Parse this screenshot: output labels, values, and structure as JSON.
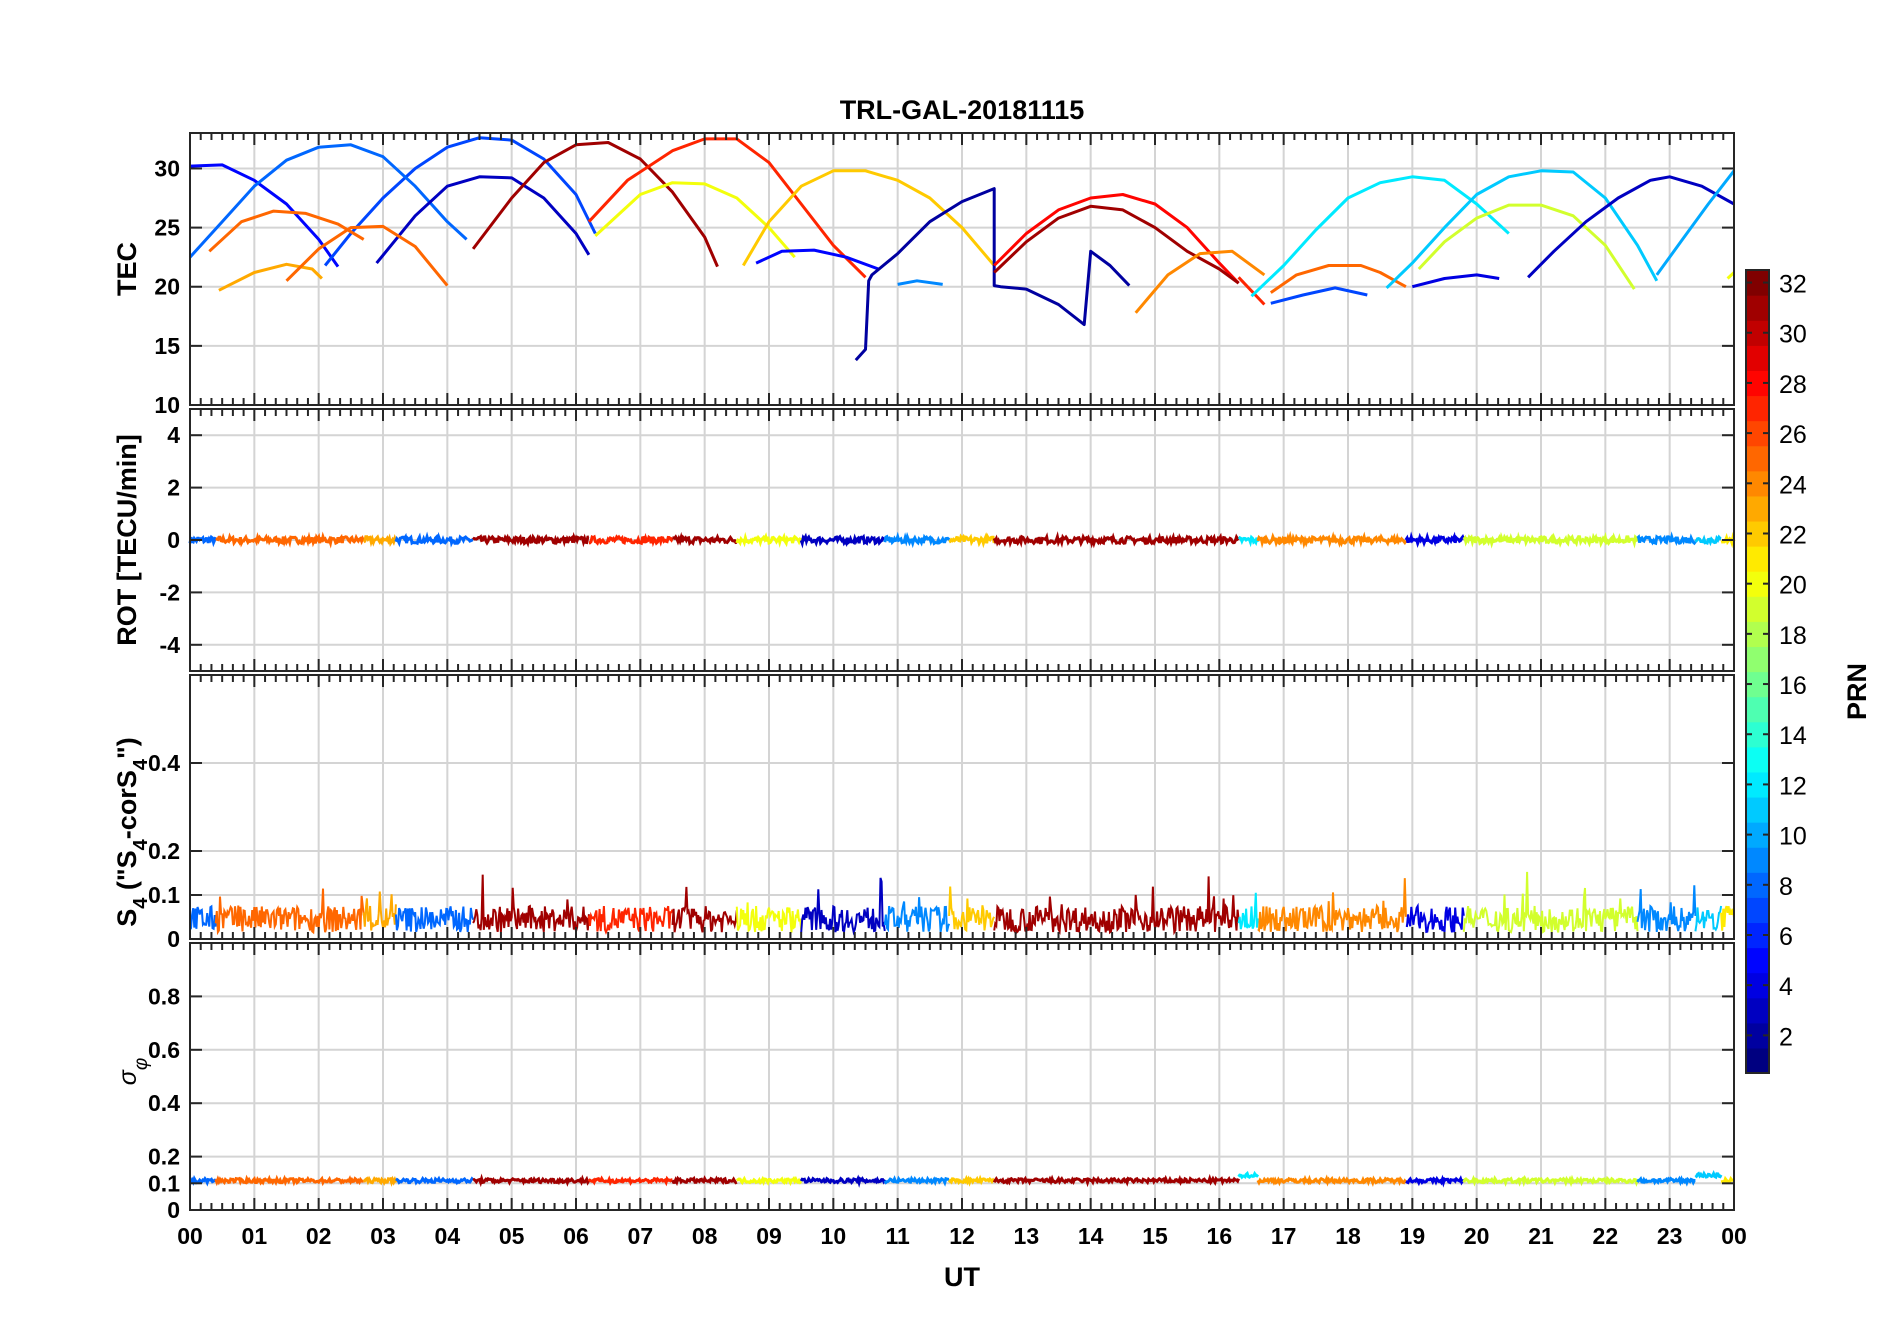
{
  "chart_data": {
    "type": "line",
    "title": "TRL-GAL-20181115",
    "xlabel": "UT",
    "x_ticks": [
      "00",
      "01",
      "02",
      "03",
      "04",
      "05",
      "06",
      "07",
      "08",
      "09",
      "10",
      "11",
      "12",
      "13",
      "14",
      "15",
      "16",
      "17",
      "18",
      "19",
      "20",
      "21",
      "22",
      "23",
      "00"
    ],
    "xlim": [
      0,
      24
    ],
    "grid": true,
    "colorbar": {
      "label": "PRN",
      "range": [
        1,
        32
      ],
      "ticks": [
        2,
        4,
        6,
        8,
        10,
        12,
        14,
        16,
        18,
        20,
        22,
        24,
        26,
        28,
        30,
        32
      ],
      "colormap": "jet"
    },
    "panels": [
      {
        "id": "tec",
        "ylabel": "TEC",
        "ylim": [
          10,
          33
        ],
        "yticks": [
          10,
          15,
          20,
          25,
          30
        ],
        "series": [
          {
            "prn": 5,
            "x": [
              0.0,
              0.5,
              1.0,
              1.5,
              2.0,
              2.3
            ],
            "y": [
              30.2,
              30.3,
              29.0,
              27.0,
              24.0,
              21.7
            ]
          },
          {
            "prn": 7,
            "x": [
              2.1,
              2.5,
              3.0,
              3.5,
              4.0,
              4.5,
              5.0,
              5.5,
              6.0,
              6.3
            ],
            "y": [
              21.8,
              24.5,
              27.5,
              30.0,
              31.8,
              32.6,
              32.4,
              30.8,
              27.8,
              24.5
            ]
          },
          {
            "prn": 8,
            "x": [
              0.0,
              0.5,
              1.0,
              1.5,
              2.0,
              2.5,
              3.0,
              3.5,
              4.0,
              4.3
            ],
            "y": [
              22.5,
              25.5,
              28.5,
              30.7,
              31.8,
              32.0,
              31.0,
              28.5,
              25.5,
              24.0
            ]
          },
          {
            "prn": 3,
            "x": [
              2.9,
              3.5,
              4.0,
              4.5,
              5.0,
              5.5,
              6.0,
              6.2
            ],
            "y": [
              22.0,
              26.0,
              28.5,
              29.3,
              29.2,
              27.5,
              24.5,
              22.7
            ]
          },
          {
            "prn": 25,
            "x": [
              0.3,
              0.8,
              1.3,
              1.8,
              2.3,
              2.7
            ],
            "y": [
              23.0,
              25.5,
              26.4,
              26.2,
              25.3,
              24.0
            ]
          },
          {
            "prn": 23,
            "x": [
              0.45,
              1.0,
              1.5,
              1.9,
              2.05
            ],
            "y": [
              19.7,
              21.2,
              21.9,
              21.5,
              20.7
            ]
          },
          {
            "prn": 25,
            "x": [
              1.5,
              2.0,
              2.5,
              3.0,
              3.5,
              4.0
            ],
            "y": [
              20.5,
              23.2,
              25.0,
              25.1,
              23.4,
              20.1
            ]
          },
          {
            "prn": 31,
            "x": [
              4.4,
              5.0,
              5.5,
              6.0,
              6.5,
              7.0,
              7.5,
              8.0,
              8.2
            ],
            "y": [
              23.2,
              27.5,
              30.5,
              32.0,
              32.2,
              30.8,
              28.0,
              24.2,
              21.7
            ]
          },
          {
            "prn": 27,
            "x": [
              6.2,
              6.8,
              7.5,
              8.0,
              8.5,
              9.0,
              9.5,
              10.0,
              10.5
            ],
            "y": [
              25.5,
              29.0,
              31.5,
              32.5,
              32.5,
              30.5,
              27.0,
              23.5,
              20.8
            ]
          },
          {
            "prn": 20,
            "x": [
              6.3,
              7.0,
              7.5,
              8.0,
              8.5,
              9.0,
              9.4
            ],
            "y": [
              24.3,
              27.8,
              28.8,
              28.7,
              27.5,
              25.0,
              22.5
            ]
          },
          {
            "prn": 22,
            "x": [
              8.6,
              9.0,
              9.5,
              10.0,
              10.5,
              11.0,
              11.5,
              12.0,
              12.5
            ],
            "y": [
              21.8,
              25.5,
              28.5,
              29.8,
              29.8,
              29.0,
              27.5,
              25.0,
              21.8
            ]
          },
          {
            "prn": 5,
            "x": [
              8.8,
              9.2,
              9.7,
              10.2,
              10.7
            ],
            "y": [
              22.0,
              23.0,
              23.1,
              22.5,
              21.5
            ]
          },
          {
            "prn": 2,
            "x": [
              10.35,
              10.5,
              10.55,
              10.6,
              11.0,
              11.5,
              12.0,
              12.5,
              12.5,
              12.6,
              13.0,
              13.5,
              13.9,
              14.0,
              14.3,
              14.6
            ],
            "y": [
              13.8,
              14.7,
              20.5,
              21.0,
              22.8,
              25.5,
              27.2,
              28.3,
              20.1,
              20.0,
              19.8,
              18.5,
              16.8,
              23.0,
              21.8,
              20.1
            ]
          },
          {
            "prn": 9,
            "x": [
              11.0,
              11.3,
              11.7
            ],
            "y": [
              20.2,
              20.5,
              20.2
            ]
          },
          {
            "prn": 28,
            "x": [
              12.5,
              13.0,
              13.5,
              14.0,
              14.5,
              15.0,
              15.5,
              16.0,
              16.3
            ],
            "y": [
              21.8,
              24.5,
              26.5,
              27.5,
              27.8,
              27.0,
              25.0,
              22.0,
              20.3
            ]
          },
          {
            "prn": 31,
            "x": [
              12.5,
              13.0,
              13.5,
              14.0,
              14.5,
              15.0,
              15.5,
              16.0,
              16.3
            ],
            "y": [
              21.2,
              23.8,
              25.8,
              26.8,
              26.5,
              25.0,
              23.0,
              21.5,
              20.3
            ]
          },
          {
            "prn": 24,
            "x": [
              14.7,
              15.2,
              15.7,
              16.2,
              16.7
            ],
            "y": [
              17.8,
              21.0,
              22.8,
              23.0,
              21.0
            ]
          },
          {
            "prn": 27,
            "x": [
              16.3,
              16.7
            ],
            "y": [
              20.8,
              18.5
            ]
          },
          {
            "prn": 12,
            "x": [
              16.5,
              17.0,
              17.5,
              18.0,
              18.5,
              19.0,
              19.5,
              20.0,
              20.5
            ],
            "y": [
              19.2,
              21.8,
              24.8,
              27.5,
              28.8,
              29.3,
              29.0,
              27.0,
              24.5
            ]
          },
          {
            "prn": 25,
            "x": [
              16.8,
              17.2,
              17.7,
              18.2,
              18.5,
              18.9
            ],
            "y": [
              19.5,
              21.0,
              21.8,
              21.8,
              21.2,
              20.0
            ]
          },
          {
            "prn": 7,
            "x": [
              16.8,
              17.3,
              17.8,
              18.3
            ],
            "y": [
              18.6,
              19.3,
              19.9,
              19.3
            ]
          },
          {
            "prn": 11,
            "x": [
              18.6,
              19.0,
              19.5,
              20.0,
              20.5,
              21.0,
              21.5,
              22.0,
              22.5,
              22.8
            ],
            "y": [
              19.9,
              22.0,
              25.0,
              27.8,
              29.3,
              29.8,
              29.7,
              27.5,
              23.5,
              20.5
            ]
          },
          {
            "prn": 4,
            "x": [
              19.0,
              19.5,
              20.0,
              20.35
            ],
            "y": [
              20.0,
              20.7,
              21.0,
              20.7
            ]
          },
          {
            "prn": 19,
            "x": [
              19.1,
              19.5,
              20.0,
              20.5,
              21.0,
              21.5,
              22.0,
              22.45
            ],
            "y": [
              21.5,
              23.8,
              25.8,
              26.9,
              26.9,
              26.0,
              23.5,
              19.8
            ]
          },
          {
            "prn": 3,
            "x": [
              20.8,
              21.2,
              21.7,
              22.2,
              22.7,
              23.0,
              23.5,
              24.0
            ],
            "y": [
              20.8,
              23.0,
              25.5,
              27.5,
              29.0,
              29.3,
              28.5,
              27.0
            ]
          },
          {
            "prn": 10,
            "x": [
              22.8,
              23.2,
              23.6,
              24.0
            ],
            "y": [
              21.0,
              24.0,
              27.0,
              29.8
            ]
          },
          {
            "prn": 20,
            "x": [
              23.9,
              24.0
            ],
            "y": [
              20.7,
              21.2
            ]
          }
        ]
      },
      {
        "id": "rot",
        "ylabel": "ROT [TECU/min]",
        "ylim": [
          -5,
          5
        ],
        "yticks": [
          -4,
          -2,
          0,
          2,
          4
        ]
      },
      {
        "id": "s4",
        "ylabel": "S4 (\"S4-corS4\")",
        "ylabel_parts": {
          "main": "S",
          "sub1": "4",
          "open": " (\"S",
          "sub2": "4",
          "mid": "-corS",
          "sub3": "4",
          "close": "\")"
        },
        "ylim": [
          0,
          0.6
        ],
        "yticks": [
          0,
          0.1,
          0.2,
          0.4
        ]
      },
      {
        "id": "sigma",
        "ylabel": "σφ",
        "ylabel_parts": {
          "sigma": "σ",
          "phi": "φ"
        },
        "ylim": [
          0,
          1
        ],
        "yticks": [
          0,
          0.1,
          0.2,
          0.4,
          0.6,
          0.8
        ]
      }
    ],
    "noise_segments": [
      {
        "prn": 8,
        "x": [
          0.0,
          0.4
        ]
      },
      {
        "prn": 25,
        "x": [
          0.4,
          2.7
        ]
      },
      {
        "prn": 23,
        "x": [
          2.7,
          3.2
        ]
      },
      {
        "prn": 8,
        "x": [
          3.2,
          4.4
        ]
      },
      {
        "prn": 31,
        "x": [
          4.4,
          6.2
        ]
      },
      {
        "prn": 27,
        "x": [
          6.2,
          7.5
        ]
      },
      {
        "prn": 31,
        "x": [
          7.5,
          8.5
        ]
      },
      {
        "prn": 20,
        "x": [
          8.5,
          9.5
        ]
      },
      {
        "prn": 3,
        "x": [
          9.5,
          10.8
        ]
      },
      {
        "prn": 9,
        "x": [
          10.8,
          11.8
        ]
      },
      {
        "prn": 22,
        "x": [
          11.8,
          12.5
        ]
      },
      {
        "prn": 31,
        "x": [
          12.5,
          16.3
        ]
      },
      {
        "prn": 12,
        "x": [
          16.3,
          16.6
        ]
      },
      {
        "prn": 24,
        "x": [
          16.6,
          18.9
        ]
      },
      {
        "prn": 4,
        "x": [
          18.9,
          19.8
        ]
      },
      {
        "prn": 19,
        "x": [
          19.8,
          22.5
        ]
      },
      {
        "prn": 9,
        "x": [
          22.5,
          23.4
        ]
      },
      {
        "prn": 11,
        "x": [
          23.4,
          23.8
        ]
      },
      {
        "prn": 21,
        "x": [
          23.8,
          24.0
        ]
      }
    ]
  }
}
